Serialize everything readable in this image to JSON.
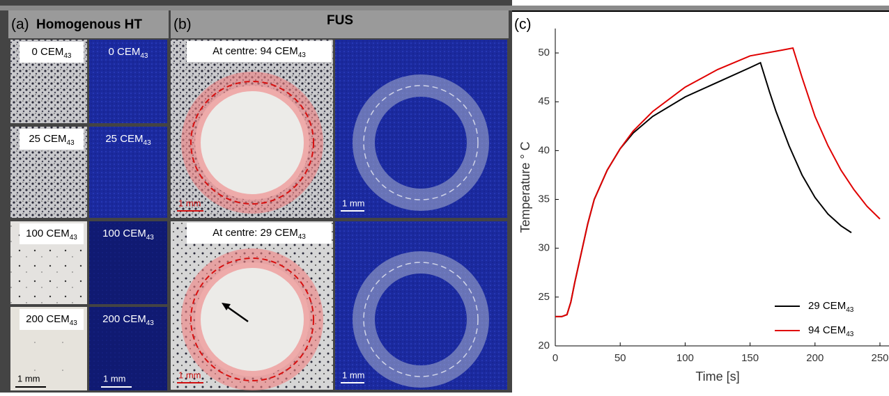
{
  "panel_a": {
    "label": "(a)",
    "title": "Homogenous HT",
    "left_labels": [
      {
        "text": "0 CEM",
        "sub": "43"
      },
      {
        "text": "25 CEM",
        "sub": "43"
      },
      {
        "text": "100 CEM",
        "sub": "43"
      },
      {
        "text": "200 CEM",
        "sub": "43"
      }
    ],
    "right_labels": [
      {
        "text": "0 CEM",
        "sub": "43"
      },
      {
        "text": "25 CEM",
        "sub": "43"
      },
      {
        "text": "100 CEM",
        "sub": "43"
      },
      {
        "text": "200 CEM",
        "sub": "43"
      }
    ],
    "scale_bars": [
      "1 mm",
      "1 mm"
    ]
  },
  "panel_b": {
    "label": "(b)",
    "title": "FUS",
    "labels": [
      {
        "text": "At centre: 94 CEM",
        "sub": "43"
      },
      {
        "text": "At centre: 29 CEM",
        "sub": "43"
      }
    ],
    "scale_bars": [
      "1 mm",
      "1 mm",
      "1 mm",
      "1 mm"
    ]
  },
  "chart_data": {
    "type": "line",
    "label": "(c)",
    "xlabel": "Time [s]",
    "ylabel": "Temperature ° C",
    "xlim": [
      0,
      250
    ],
    "ylim": [
      20,
      52.5
    ],
    "xticks": [
      0,
      50,
      100,
      150,
      200,
      250
    ],
    "yticks": [
      20,
      25,
      30,
      35,
      40,
      45,
      50
    ],
    "legend": "lower right",
    "series": [
      {
        "name": "29 CEM",
        "name_sub": "43",
        "color": "#000000",
        "x": [
          0,
          5,
          9,
          12,
          15,
          20,
          25,
          30,
          40,
          50,
          60,
          75,
          100,
          125,
          150,
          158,
          165,
          170,
          180,
          190,
          200,
          210,
          220,
          228
        ],
        "values": [
          23,
          23,
          23.2,
          24.5,
          26.5,
          29.5,
          32.5,
          35,
          38,
          40.2,
          41.8,
          43.5,
          45.5,
          47,
          48.5,
          49,
          46,
          44,
          40.5,
          37.5,
          35.2,
          33.5,
          32.3,
          31.6
        ]
      },
      {
        "name": "94 CEM",
        "name_sub": "43",
        "color": "#e00000",
        "x": [
          0,
          5,
          9,
          12,
          15,
          20,
          25,
          30,
          40,
          50,
          60,
          75,
          100,
          125,
          150,
          175,
          183,
          190,
          200,
          210,
          220,
          230,
          240,
          250
        ],
        "values": [
          23,
          23,
          23.2,
          24.5,
          26.5,
          29.5,
          32.5,
          35,
          38,
          40.2,
          42,
          44,
          46.5,
          48.3,
          49.7,
          50.3,
          50.5,
          47.5,
          43.5,
          40.5,
          38,
          36,
          34.3,
          33
        ]
      }
    ]
  }
}
